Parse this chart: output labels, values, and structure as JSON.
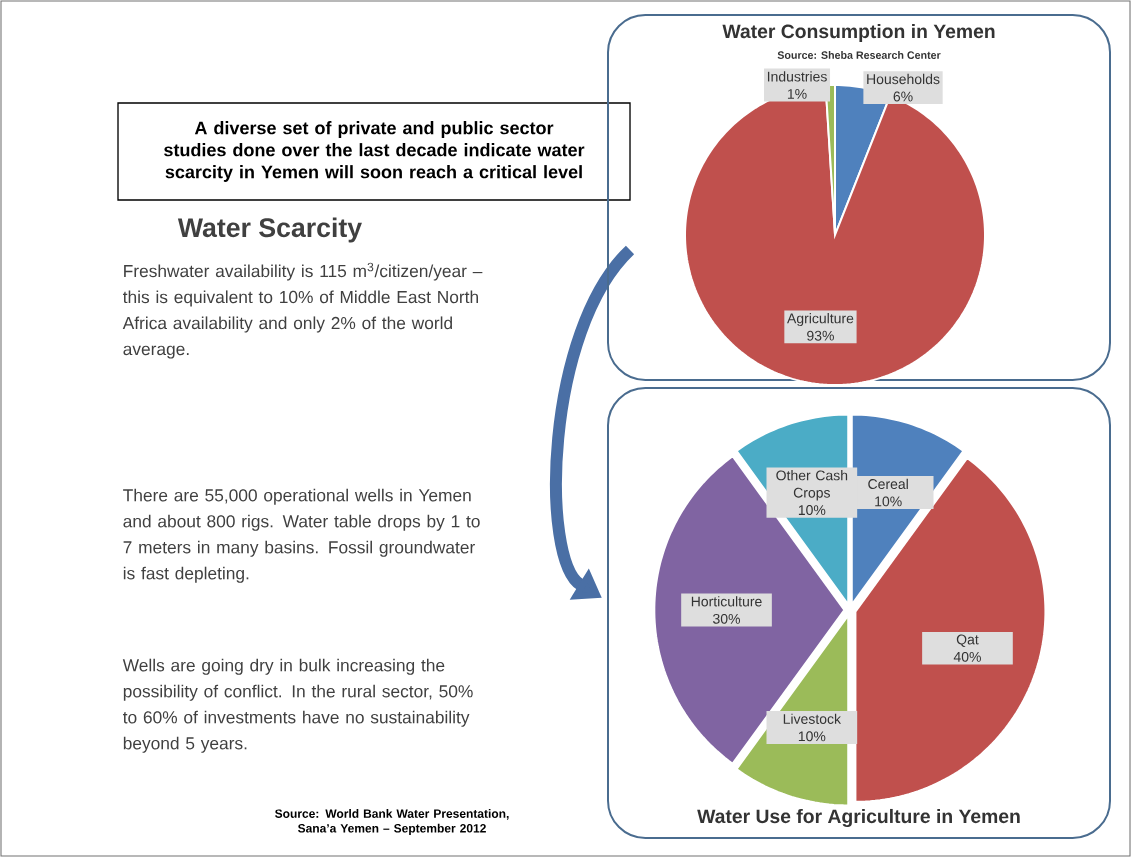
{
  "chart_data": [
    {
      "type": "other",
      "title": "A diverse set of private and public sector studies done over the last decade indicate water scarcity in Yemen will soon reach a critical level",
      "subtitle": "Water Scarcity",
      "annotations": [
        "Freshwater availability is 115 m$^{3}$/citizen/year – this is equivalent to 10% of Middle East North Africa availability and only 2% of the world average.",
        "There are 55,000 operational wells in Yemen and about 800 rigs.  Water table drops by 1 to 7 meters in many basins.  Fossil groundwater is fast depleting.",
        "Wells are going dry in bulk increasing the possibility of conflict. In the rural sector, 50% to 60% of investments have no sustainability beyond 5 years.",
        "Source: World Bank Water Presentation, Sana’a Yemen – September 2012"
      ]
    },
    {
      "type": "pie",
      "title": "Water Consumption in Yemen",
      "subtitle": "Source: Sheba Research Center",
      "categories": [
        "Households",
        "Agriculture",
        "Industries"
      ],
      "values": [
        6,
        93,
        1
      ],
      "value_labels": [
        "6%",
        "93%",
        "1%"
      ],
      "colors": [
        "#4f81bd",
        "#c0504d",
        "#9bbb59"
      ]
    },
    {
      "type": "pie",
      "title": "Water Use for  Agriculture in Yemen",
      "categories": [
        "Cereal",
        "Qat",
        "Livestock",
        "Horticulture",
        "Other Cash Crops"
      ],
      "values": [
        10,
        40,
        10,
        30,
        10
      ],
      "value_labels": [
        "10%",
        "40%",
        "10%",
        "30%",
        "10%"
      ],
      "colors": [
        "#4f81bd",
        "#c0504d",
        "#9bbb59",
        "#8064a2",
        "#4bacc6"
      ]
    }
  ]
}
